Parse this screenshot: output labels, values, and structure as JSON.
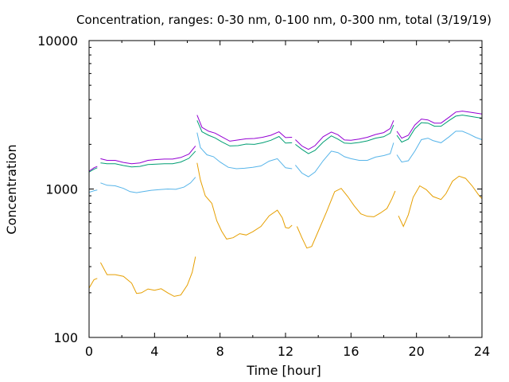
{
  "chart_data": {
    "type": "line",
    "title": "Concentration, ranges: 0-30 nm, 0-100 nm, 0-300 nm, total (3/19/19)",
    "xlabel": "Time [hour]",
    "ylabel": "Concentration",
    "xlim": [
      0,
      24
    ],
    "ylim": [
      100,
      10000
    ],
    "yscale": "log",
    "grid": false,
    "legend": "none",
    "x_ticks": [
      "0",
      "4",
      "8",
      "12",
      "16",
      "20",
      "24"
    ],
    "y_ticks": [
      "100",
      "1000",
      "10000"
    ],
    "series": [
      {
        "color": "#e69f00",
        "segments": [
          [
            [
              0,
              215
            ],
            [
              0.3,
              245
            ],
            [
              0.5,
              250
            ]
          ],
          [
            [
              0.7,
              320
            ],
            [
              1.1,
              265
            ],
            [
              1.6,
              265
            ],
            [
              2.1,
              258
            ],
            [
              2.6,
              232
            ],
            [
              2.9,
              198
            ],
            [
              3.2,
              200
            ],
            [
              3.6,
              212
            ],
            [
              4,
              208
            ],
            [
              4.4,
              213
            ],
            [
              4.8,
              200
            ],
            [
              5.2,
              189
            ],
            [
              5.6,
              193
            ],
            [
              6,
              225
            ],
            [
              6.3,
              275
            ],
            [
              6.5,
              350
            ]
          ],
          [
            [
              6.6,
              1500
            ],
            [
              6.8,
              1150
            ],
            [
              7.1,
              900
            ],
            [
              7.5,
              800
            ],
            [
              7.8,
              610
            ],
            [
              8.1,
              520
            ],
            [
              8.4,
              460
            ],
            [
              8.8,
              470
            ],
            [
              9.2,
              500
            ],
            [
              9.6,
              490
            ],
            [
              10,
              515
            ],
            [
              10.5,
              560
            ],
            [
              11,
              660
            ],
            [
              11.5,
              720
            ],
            [
              11.8,
              640
            ],
            [
              12,
              550
            ],
            [
              12.2,
              545
            ],
            [
              12.4,
              570
            ]
          ],
          [
            [
              12.7,
              560
            ],
            [
              13,
              470
            ],
            [
              13.3,
              400
            ],
            [
              13.6,
              410
            ],
            [
              14,
              520
            ],
            [
              14.5,
              700
            ],
            [
              15,
              960
            ],
            [
              15.4,
              1010
            ],
            [
              15.8,
              890
            ],
            [
              16.2,
              770
            ],
            [
              16.6,
              680
            ],
            [
              17,
              655
            ],
            [
              17.4,
              650
            ],
            [
              17.8,
              690
            ],
            [
              18.2,
              740
            ],
            [
              18.5,
              860
            ],
            [
              18.7,
              970
            ]
          ],
          [
            [
              18.9,
              660
            ],
            [
              19.2,
              560
            ],
            [
              19.5,
              670
            ],
            [
              19.8,
              880
            ],
            [
              20.2,
              1050
            ],
            [
              20.6,
              990
            ],
            [
              21,
              890
            ],
            [
              21.5,
              850
            ],
            [
              21.8,
              930
            ],
            [
              22.2,
              1130
            ],
            [
              22.6,
              1220
            ],
            [
              23,
              1180
            ],
            [
              23.4,
              1050
            ],
            [
              23.8,
              910
            ],
            [
              24,
              860
            ]
          ]
        ]
      },
      {
        "color": "#56b4e9",
        "segments": [
          [
            [
              0,
              950
            ],
            [
              0.3,
              975
            ],
            [
              0.5,
              985
            ]
          ],
          [
            [
              0.7,
              1100
            ],
            [
              1.1,
              1060
            ],
            [
              1.6,
              1050
            ],
            [
              2.1,
              1010
            ],
            [
              2.5,
              960
            ],
            [
              2.9,
              945
            ],
            [
              3.3,
              960
            ],
            [
              3.8,
              980
            ],
            [
              4.3,
              990
            ],
            [
              4.8,
              1000
            ],
            [
              5.3,
              995
            ],
            [
              5.8,
              1030
            ],
            [
              6.2,
              1100
            ],
            [
              6.5,
              1200
            ]
          ],
          [
            [
              6.6,
              2400
            ],
            [
              6.8,
              1900
            ],
            [
              7.2,
              1700
            ],
            [
              7.6,
              1650
            ],
            [
              8,
              1520
            ],
            [
              8.5,
              1400
            ],
            [
              9,
              1370
            ],
            [
              9.5,
              1380
            ],
            [
              10,
              1400
            ],
            [
              10.5,
              1430
            ],
            [
              11,
              1540
            ],
            [
              11.5,
              1600
            ],
            [
              12,
              1390
            ],
            [
              12.4,
              1370
            ]
          ],
          [
            [
              12.6,
              1450
            ],
            [
              13,
              1280
            ],
            [
              13.4,
              1210
            ],
            [
              13.8,
              1300
            ],
            [
              14.3,
              1550
            ],
            [
              14.8,
              1800
            ],
            [
              15.2,
              1760
            ],
            [
              15.6,
              1650
            ],
            [
              16,
              1600
            ],
            [
              16.5,
              1560
            ],
            [
              17,
              1560
            ],
            [
              17.5,
              1640
            ],
            [
              18,
              1680
            ],
            [
              18.4,
              1730
            ],
            [
              18.6,
              2050
            ]
          ],
          [
            [
              18.8,
              1700
            ],
            [
              19.1,
              1520
            ],
            [
              19.5,
              1550
            ],
            [
              19.9,
              1800
            ],
            [
              20.3,
              2150
            ],
            [
              20.7,
              2200
            ],
            [
              21,
              2120
            ],
            [
              21.5,
              2050
            ],
            [
              22,
              2250
            ],
            [
              22.4,
              2450
            ],
            [
              22.8,
              2450
            ],
            [
              23.2,
              2350
            ],
            [
              23.6,
              2230
            ],
            [
              24,
              2150
            ]
          ]
        ]
      },
      {
        "color": "#009e73",
        "segments": [
          [
            [
              0,
              1300
            ],
            [
              0.3,
              1360
            ],
            [
              0.5,
              1390
            ]
          ],
          [
            [
              0.7,
              1500
            ],
            [
              1.1,
              1480
            ],
            [
              1.6,
              1480
            ],
            [
              2.1,
              1440
            ],
            [
              2.6,
              1410
            ],
            [
              3.1,
              1420
            ],
            [
              3.6,
              1460
            ],
            [
              4.1,
              1470
            ],
            [
              4.6,
              1480
            ],
            [
              5.1,
              1480
            ],
            [
              5.6,
              1520
            ],
            [
              6.1,
              1610
            ],
            [
              6.5,
              1800
            ]
          ],
          [
            [
              6.6,
              2900
            ],
            [
              6.9,
              2430
            ],
            [
              7.3,
              2300
            ],
            [
              7.7,
              2210
            ],
            [
              8.1,
              2080
            ],
            [
              8.6,
              1950
            ],
            [
              9.1,
              1960
            ],
            [
              9.6,
              2010
            ],
            [
              10.1,
              2000
            ],
            [
              10.6,
              2050
            ],
            [
              11.1,
              2130
            ],
            [
              11.6,
              2260
            ],
            [
              12,
              2040
            ],
            [
              12.4,
              2050
            ]
          ],
          [
            [
              12.6,
              2000
            ],
            [
              13,
              1850
            ],
            [
              13.4,
              1730
            ],
            [
              13.8,
              1820
            ],
            [
              14.3,
              2070
            ],
            [
              14.8,
              2280
            ],
            [
              15.2,
              2170
            ],
            [
              15.6,
              2040
            ],
            [
              16,
              2030
            ],
            [
              16.5,
              2060
            ],
            [
              17,
              2110
            ],
            [
              17.5,
              2200
            ],
            [
              18,
              2250
            ],
            [
              18.4,
              2380
            ],
            [
              18.6,
              2700
            ]
          ],
          [
            [
              18.8,
              2300
            ],
            [
              19.1,
              2070
            ],
            [
              19.5,
              2170
            ],
            [
              19.9,
              2550
            ],
            [
              20.3,
              2800
            ],
            [
              20.7,
              2780
            ],
            [
              21.1,
              2650
            ],
            [
              21.5,
              2650
            ],
            [
              22,
              2900
            ],
            [
              22.4,
              3100
            ],
            [
              22.8,
              3150
            ],
            [
              23.2,
              3100
            ],
            [
              23.6,
              3050
            ],
            [
              24,
              3000
            ]
          ]
        ]
      },
      {
        "color": "#9400d3",
        "segments": [
          [
            [
              0,
              1320
            ],
            [
              0.3,
              1390
            ],
            [
              0.5,
              1420
            ]
          ],
          [
            [
              0.7,
              1600
            ],
            [
              1.1,
              1560
            ],
            [
              1.6,
              1560
            ],
            [
              2.1,
              1510
            ],
            [
              2.6,
              1480
            ],
            [
              3.1,
              1500
            ],
            [
              3.6,
              1560
            ],
            [
              4.1,
              1580
            ],
            [
              4.6,
              1590
            ],
            [
              5.1,
              1590
            ],
            [
              5.6,
              1630
            ],
            [
              6.1,
              1720
            ],
            [
              6.5,
              1950
            ]
          ],
          [
            [
              6.6,
              3150
            ],
            [
              6.9,
              2600
            ],
            [
              7.3,
              2450
            ],
            [
              7.7,
              2380
            ],
            [
              8.1,
              2250
            ],
            [
              8.6,
              2100
            ],
            [
              9.1,
              2140
            ],
            [
              9.6,
              2180
            ],
            [
              10.1,
              2190
            ],
            [
              10.6,
              2230
            ],
            [
              11.1,
              2300
            ],
            [
              11.6,
              2430
            ],
            [
              12,
              2220
            ],
            [
              12.4,
              2230
            ]
          ],
          [
            [
              12.6,
              2150
            ],
            [
              13,
              1950
            ],
            [
              13.4,
              1850
            ],
            [
              13.8,
              1960
            ],
            [
              14.3,
              2250
            ],
            [
              14.8,
              2420
            ],
            [
              15.2,
              2320
            ],
            [
              15.6,
              2140
            ],
            [
              16,
              2130
            ],
            [
              16.5,
              2170
            ],
            [
              17,
              2230
            ],
            [
              17.5,
              2330
            ],
            [
              18,
              2400
            ],
            [
              18.4,
              2560
            ],
            [
              18.6,
              2900
            ]
          ],
          [
            [
              18.8,
              2450
            ],
            [
              19.1,
              2200
            ],
            [
              19.5,
              2300
            ],
            [
              19.9,
              2700
            ],
            [
              20.3,
              2960
            ],
            [
              20.7,
              2920
            ],
            [
              21.1,
              2780
            ],
            [
              21.5,
              2780
            ],
            [
              22,
              3050
            ],
            [
              22.4,
              3300
            ],
            [
              22.8,
              3350
            ],
            [
              23.2,
              3300
            ],
            [
              23.6,
              3250
            ],
            [
              24,
              3200
            ]
          ]
        ]
      }
    ]
  }
}
